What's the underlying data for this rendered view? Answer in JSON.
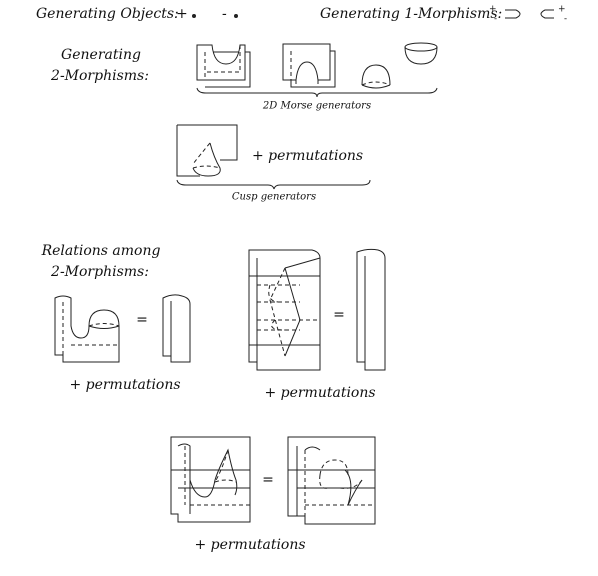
{
  "header": {
    "objects_label": "Generating Objects:",
    "object_plus": "+",
    "object_minus": "-",
    "morphisms_label": "Generating 1-Morphisms:",
    "morphism_1_top": "+",
    "morphism_1_bottom": "-",
    "morphism_2_top": "+",
    "morphism_2_bottom": "-"
  },
  "generators": {
    "label_lines": [
      "Generating",
      "2-Morphisms:"
    ],
    "morse_caption": "2D Morse generators",
    "cusp_permutations": "+ permutations",
    "cusp_caption": "Cusp generators"
  },
  "relations": {
    "label_lines": [
      "Relations among",
      "2-Morphisms:"
    ],
    "items": [
      {
        "equals": "=",
        "permutations": "+ permutations"
      },
      {
        "equals": "=",
        "permutations": "+ permutations"
      },
      {
        "equals": "=",
        "permutations": "+ permutations"
      }
    ]
  }
}
